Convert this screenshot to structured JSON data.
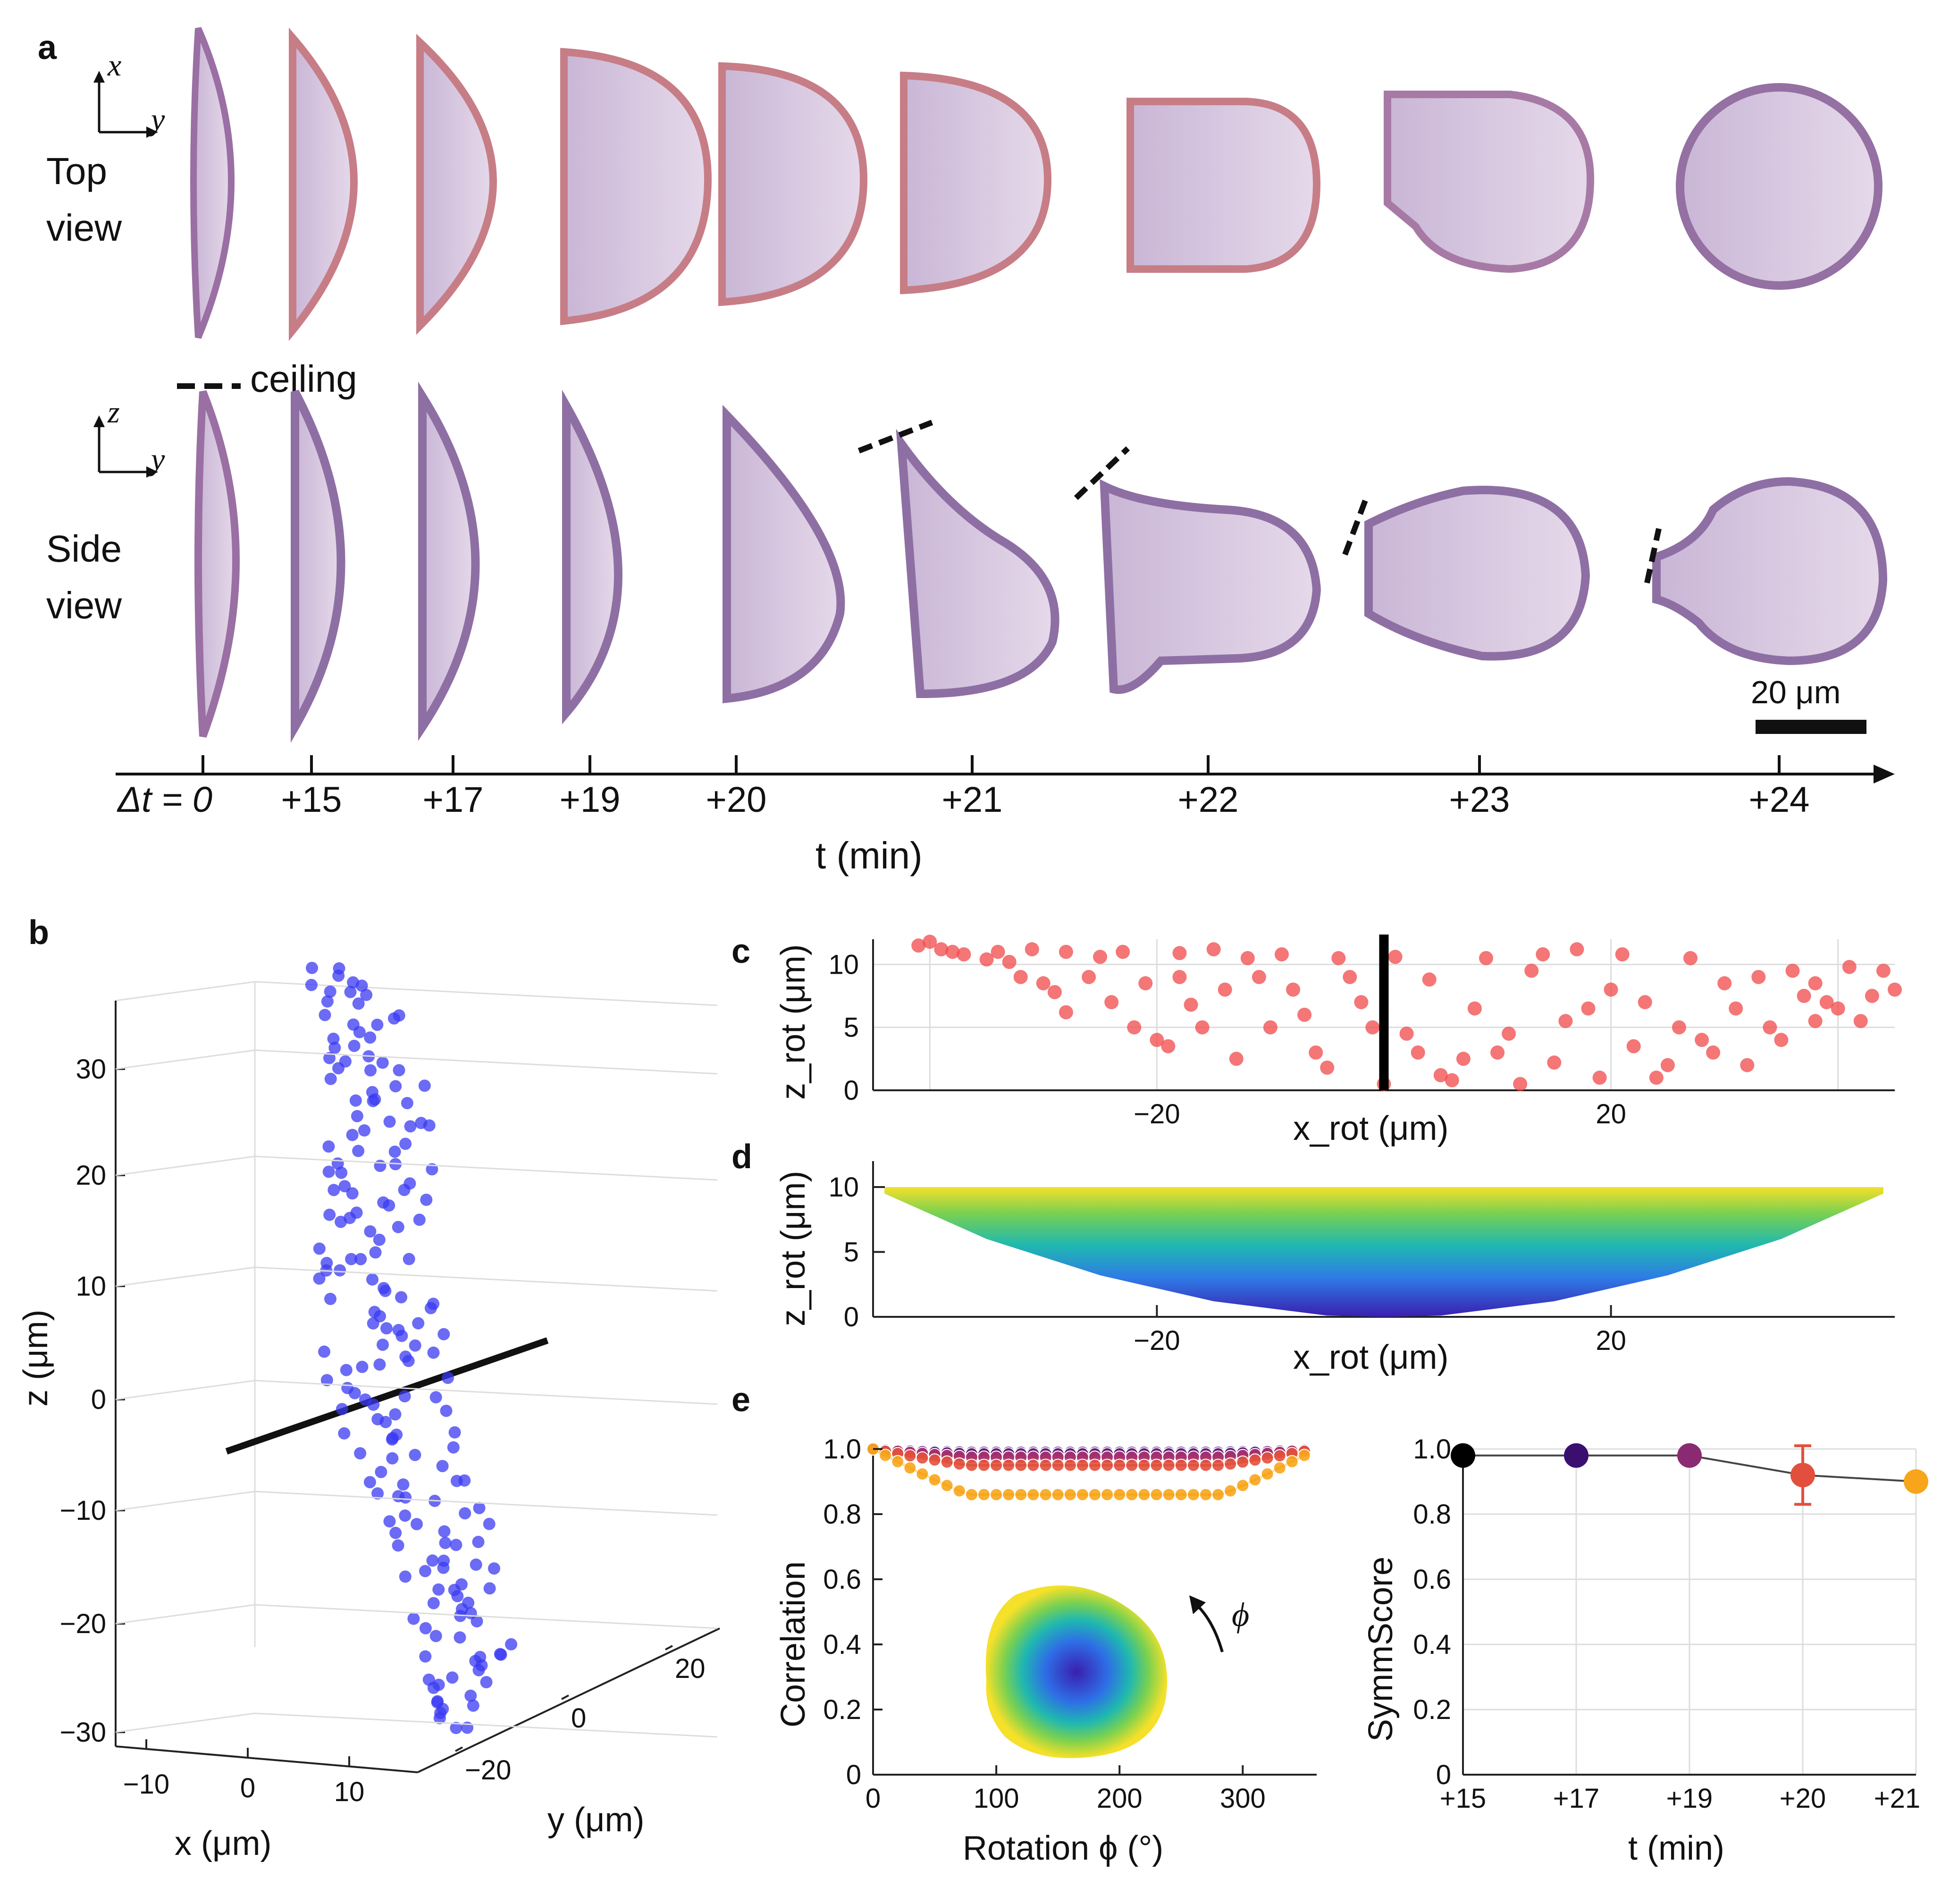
{
  "panel_labels": {
    "a": "a",
    "b": "b",
    "c": "c",
    "d": "d",
    "e": "e"
  },
  "panel_a": {
    "axes_top": {
      "up": "x",
      "right": "y"
    },
    "axes_side": {
      "up": "z",
      "right": "y"
    },
    "top_view_label": [
      "Top",
      "view"
    ],
    "side_view_label": [
      "Side",
      "view"
    ],
    "ceiling_label": "ceiling",
    "scale_bar_label": "20 μm",
    "time_labels": [
      "Δt = 0",
      "+15",
      "+17",
      "+19",
      "+20",
      "+21",
      "+22",
      "+23",
      "+24"
    ],
    "time_axis_label": "t (min)",
    "cell_color": "#b9a3c9",
    "rim_color": "#d9877a"
  },
  "panel_b": {
    "z_ticks": [
      "30",
      "20",
      "10",
      "0",
      "−10",
      "−20",
      "−30"
    ],
    "x_ticks": [
      "−10",
      "0",
      "10"
    ],
    "y_ticks": [
      "−20",
      "0",
      "20"
    ],
    "z_label": "z (μm)",
    "x_label": "x (μm)",
    "y_label": "y (μm)",
    "point_color": "#3a3af2"
  },
  "chart_data": [
    {
      "id": "c",
      "type": "scatter",
      "xlabel": "x_rot (μm)",
      "ylabel": "z_rot (μm)",
      "x_ticks": [
        "−20",
        "20"
      ],
      "y_ticks": [
        "0",
        "5",
        "10"
      ],
      "xlim": [
        -45,
        45
      ],
      "ylim": [
        0,
        12
      ],
      "color": "#f04848",
      "points": [
        [
          -41,
          11.5
        ],
        [
          -40,
          11.8
        ],
        [
          -39,
          11.2
        ],
        [
          -38,
          11.0
        ],
        [
          -37,
          10.8
        ],
        [
          -35,
          10.4
        ],
        [
          -34,
          11.0
        ],
        [
          -33,
          10.2
        ],
        [
          -32,
          9.0
        ],
        [
          -31,
          11.2
        ],
        [
          -30,
          8.5
        ],
        [
          -29,
          7.8
        ],
        [
          -28,
          11.0
        ],
        [
          -28,
          6.2
        ],
        [
          -26,
          9.0
        ],
        [
          -25,
          10.6
        ],
        [
          -24,
          7.0
        ],
        [
          -23,
          11.0
        ],
        [
          -22,
          5.0
        ],
        [
          -21,
          8.5
        ],
        [
          -20,
          4.0
        ],
        [
          -19,
          3.5
        ],
        [
          -18,
          10.9
        ],
        [
          -18,
          9.0
        ],
        [
          -17,
          6.8
        ],
        [
          -16,
          5.0
        ],
        [
          -15,
          11.2
        ],
        [
          -14,
          8.0
        ],
        [
          -13,
          2.5
        ],
        [
          -12,
          10.5
        ],
        [
          -11,
          9.0
        ],
        [
          -10,
          5.0
        ],
        [
          -9,
          10.8
        ],
        [
          -8,
          8.0
        ],
        [
          -7,
          6.0
        ],
        [
          -6,
          3.0
        ],
        [
          -5,
          1.8
        ],
        [
          -4,
          10.5
        ],
        [
          -3,
          9.0
        ],
        [
          -2,
          7.0
        ],
        [
          -1,
          5.0
        ],
        [
          0,
          0.5
        ],
        [
          1,
          10.6
        ],
        [
          2,
          4.5
        ],
        [
          3,
          3.0
        ],
        [
          4,
          8.8
        ],
        [
          5,
          1.2
        ],
        [
          6,
          0.8
        ],
        [
          7,
          2.5
        ],
        [
          8,
          6.5
        ],
        [
          9,
          10.5
        ],
        [
          10,
          3.0
        ],
        [
          11,
          4.5
        ],
        [
          12,
          0.5
        ],
        [
          13,
          9.5
        ],
        [
          14,
          10.8
        ],
        [
          15,
          2.2
        ],
        [
          16,
          5.5
        ],
        [
          17,
          11.2
        ],
        [
          18,
          6.5
        ],
        [
          19,
          1.0
        ],
        [
          20,
          8.0
        ],
        [
          21,
          10.8
        ],
        [
          22,
          3.5
        ],
        [
          23,
          7.0
        ],
        [
          24,
          1.0
        ],
        [
          25,
          2.0
        ],
        [
          26,
          5.0
        ],
        [
          27,
          10.5
        ],
        [
          28,
          4.0
        ],
        [
          29,
          3.0
        ],
        [
          30,
          8.5
        ],
        [
          31,
          6.5
        ],
        [
          32,
          2.0
        ],
        [
          33,
          9.0
        ],
        [
          34,
          5.0
        ],
        [
          35,
          4.0
        ],
        [
          36,
          9.5
        ],
        [
          37,
          7.5
        ],
        [
          38,
          5.5
        ],
        [
          38,
          8.5
        ],
        [
          39,
          7.0
        ],
        [
          40,
          6.5
        ],
        [
          41,
          9.8
        ],
        [
          42,
          5.5
        ],
        [
          43,
          7.5
        ],
        [
          44,
          9.5
        ],
        [
          45,
          8.0
        ]
      ],
      "vertical_line_x": 0
    },
    {
      "id": "d",
      "type": "area",
      "xlabel": "x_rot (μm)",
      "ylabel": "z_rot (μm)",
      "x_ticks": [
        "−20",
        "20"
      ],
      "y_ticks": [
        "0",
        "5",
        "10"
      ],
      "xlim": [
        -45,
        45
      ],
      "ylim": [
        0,
        12
      ],
      "colormap": [
        "#3a1fb0",
        "#2e7be6",
        "#1fb8b0",
        "#7ad150",
        "#f5e02a"
      ],
      "surface_x": [
        -44,
        -35,
        -25,
        -15,
        -5,
        0,
        5,
        15,
        25,
        35,
        44
      ],
      "surface_bottom_z": [
        9.5,
        6.0,
        3.2,
        1.2,
        0.1,
        0.0,
        0.1,
        1.2,
        3.2,
        6.0,
        9.5
      ],
      "surface_top_z": 10
    },
    {
      "id": "e_left",
      "type": "line",
      "xlabel": "Rotation ϕ (°)",
      "ylabel": "Correlation",
      "x_ticks": [
        "0",
        "100",
        "200",
        "300"
      ],
      "y_ticks": [
        "0",
        "0.2",
        "0.4",
        "0.6",
        "0.8",
        "1.0"
      ],
      "xlim": [
        0,
        360
      ],
      "ylim": [
        0,
        1.0
      ],
      "inset_label": "ϕ",
      "series": [
        {
          "name": "+15",
          "color": "#3b0f6f",
          "values_min": 0.99
        },
        {
          "name": "+17",
          "color": "#6a1d7a",
          "values_min": 0.985
        },
        {
          "name": "+19",
          "color": "#a8336f",
          "values_min": 0.975
        },
        {
          "name": "+20",
          "color": "#e2503d",
          "values_min": 0.95
        },
        {
          "name": "+21",
          "color": "#f7a61c",
          "values_min": 0.86
        }
      ]
    },
    {
      "id": "e_right",
      "type": "scatter",
      "xlabel": "t (min)",
      "ylabel": "SymmScore",
      "categories": [
        "+15",
        "+17",
        "+19",
        "+20",
        "+21"
      ],
      "y_ticks": [
        "0",
        "0.2",
        "0.4",
        "0.6",
        "0.8",
        "1.0"
      ],
      "ylim": [
        0,
        1.0
      ],
      "values": [
        0.98,
        0.98,
        0.98,
        0.92,
        0.9
      ],
      "errors": [
        0.0,
        0.0,
        0.0,
        0.09,
        0.02
      ],
      "colors": [
        "#000000",
        "#3b0f6f",
        "#8a2a72",
        "#e2503d",
        "#f7a61c"
      ]
    }
  ]
}
